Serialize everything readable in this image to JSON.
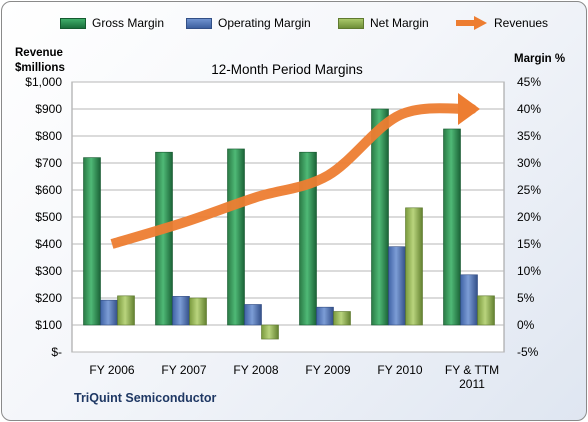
{
  "legend": {
    "gross": "Gross Margin",
    "operating": "Operating Margin",
    "net": "Net Margin",
    "revenues": "Revenues"
  },
  "left_axis_title": [
    "Revenue",
    "$millions"
  ],
  "right_axis_title": "Margin %",
  "company": "TriQuint Semiconductor",
  "colors": {
    "gross": "#1f8a4c",
    "operating": "#4a71b8",
    "net": "#8db04a",
    "revenues": "#ed7d31"
  },
  "chart_data": {
    "type": "bar",
    "title": "12-Month Period Margins",
    "categories": [
      "FY 2006",
      "FY 2007",
      "FY 2008",
      "FY 2009",
      "FY 2010",
      "FY & TTM 2011"
    ],
    "series": [
      {
        "name": "Gross Margin",
        "axis": "right",
        "values": [
          31.0,
          32.0,
          32.6,
          32.0,
          40.0,
          36.3
        ]
      },
      {
        "name": "Operating Margin",
        "axis": "right",
        "values": [
          4.6,
          5.3,
          3.8,
          3.3,
          14.5,
          9.3
        ]
      },
      {
        "name": "Net Margin",
        "axis": "right",
        "values": [
          5.4,
          5.0,
          -2.6,
          2.5,
          21.7,
          5.4
        ]
      },
      {
        "name": "Revenues",
        "type": "line",
        "axis": "left",
        "values": [
          400,
          480,
          573,
          654,
          878,
          900
        ]
      }
    ],
    "y_left": {
      "min": 0,
      "max": 1000,
      "step": 100,
      "tick_labels": [
        "$-",
        "$100",
        "$200",
        "$300",
        "$400",
        "$500",
        "$600",
        "$700",
        "$800",
        "$900",
        "$1,000"
      ]
    },
    "y_right": {
      "min": -5,
      "max": 45,
      "step": 5,
      "tick_labels": [
        "-5%",
        "0%",
        "5%",
        "10%",
        "15%",
        "20%",
        "25%",
        "30%",
        "35%",
        "40%",
        "45%"
      ]
    },
    "grid": true,
    "legend_position": "top"
  }
}
